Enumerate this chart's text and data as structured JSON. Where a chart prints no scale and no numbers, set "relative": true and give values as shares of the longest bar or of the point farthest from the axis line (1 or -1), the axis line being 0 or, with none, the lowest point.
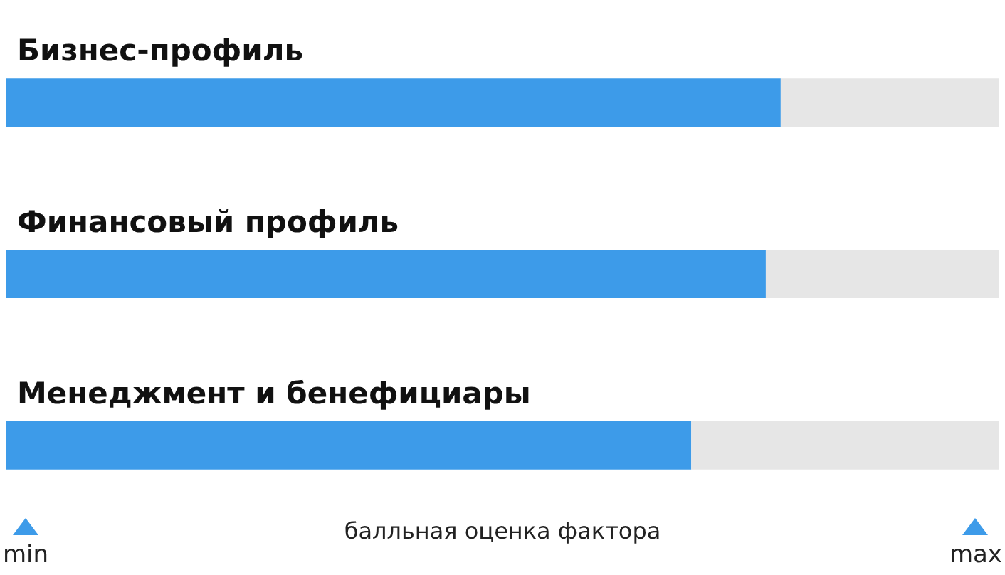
{
  "chart_data": {
    "type": "bar",
    "orientation": "horizontal",
    "stacked": true,
    "relative": true,
    "categories": [
      "Бизнес-профиль",
      "Финансовый профиль",
      "Менеджмент и бенефициары"
    ],
    "series": [
      {
        "color": "#3d9be9",
        "values": [
          0.78,
          0.765,
          0.69
        ]
      },
      {
        "color": "#e6e6e6",
        "values": [
          0.22,
          0.235,
          0.31
        ]
      }
    ],
    "xlabel": "балльная оценка фактора",
    "annotations": [
      "min",
      "max"
    ]
  }
}
